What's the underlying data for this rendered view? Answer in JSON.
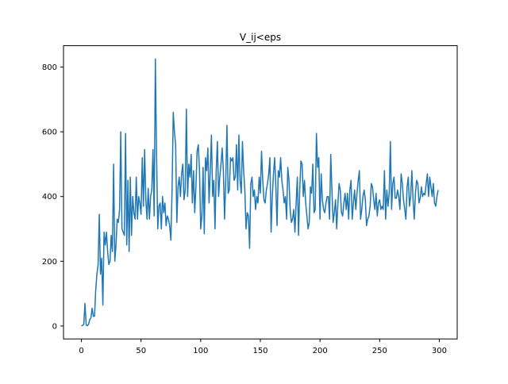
{
  "chart_data": {
    "type": "line",
    "title": "V_ij<eps",
    "xlabel": "",
    "ylabel": "",
    "xlim": [
      -15,
      315
    ],
    "ylim": [
      -40,
      866
    ],
    "xticks": [
      0,
      50,
      100,
      150,
      200,
      250,
      300
    ],
    "yticks": [
      0,
      200,
      400,
      600,
      800
    ],
    "grid": false,
    "legend": "none",
    "line_color": "#1f77b4",
    "series": [
      {
        "x_start": 0,
        "x_step": 1,
        "values": [
          0,
          2,
          5,
          70,
          3,
          1,
          5,
          20,
          25,
          55,
          30,
          30,
          110,
          160,
          190,
          345,
          160,
          210,
          65,
          290,
          250,
          290,
          230,
          190,
          200,
          280,
          230,
          500,
          200,
          250,
          330,
          320,
          360,
          600,
          300,
          290,
          280,
          595,
          250,
          450,
          230,
          460,
          280,
          400,
          350,
          330,
          460,
          330,
          400,
          380,
          345,
          520,
          370,
          545,
          390,
          330,
          425,
          330,
          400,
          420,
          545,
          340,
          825,
          530,
          300,
          370,
          380,
          300,
          400,
          350,
          380,
          310,
          340,
          330,
          310,
          265,
          420,
          660,
          600,
          560,
          320,
          430,
          460,
          400,
          470,
          500,
          390,
          420,
          670,
          400,
          500,
          460,
          530,
          380,
          480,
          350,
          430,
          540,
          560,
          480,
          300,
          340,
          490,
          285,
          520,
          480,
          550,
          380,
          480,
          590,
          400,
          450,
          300,
          480,
          570,
          400,
          460,
          500,
          550,
          480,
          330,
          450,
          620,
          410,
          420,
          520,
          510,
          520,
          450,
          460,
          560,
          420,
          590,
          450,
          410,
          570,
          480,
          420,
          300,
          350,
          340,
          240,
          440,
          460,
          400,
          420,
          360,
          400,
          380,
          460,
          410,
          540,
          450,
          390,
          380,
          420,
          440,
          470,
          520,
          290,
          400,
          470,
          520,
          430,
          310,
          480,
          460,
          520,
          450,
          420,
          380,
          400,
          330,
          490,
          450,
          360,
          320,
          330,
          360,
          290,
          380,
          460,
          280,
          420,
          510,
          500,
          400,
          450,
          380,
          340,
          300,
          320,
          430,
          410,
          500,
          350,
          360,
          595,
          490,
          520,
          330,
          470,
          390,
          360,
          350,
          380,
          400,
          400,
          330,
          530,
          420,
          320,
          350,
          390,
          300,
          380,
          440,
          420,
          350,
          340,
          380,
          410,
          360,
          410,
          330,
          420,
          450,
          330,
          380,
          420,
          360,
          410,
          450,
          480,
          330,
          360,
          400,
          420,
          390,
          310,
          330,
          340,
          370,
          440,
          430,
          390,
          360,
          410,
          340,
          380,
          390,
          360,
          370,
          360,
          480,
          330,
          420,
          370,
          410,
          570,
          360,
          440,
          460,
          395,
          395,
          420,
          400,
          360,
          470,
          440,
          390,
          360,
          330,
          430,
          460,
          370,
          400,
          480,
          390,
          330,
          410,
          450,
          440,
          380,
          395,
          430,
          400,
          410,
          405,
          440,
          470,
          400,
          460,
          430,
          400,
          440,
          380,
          370,
          400,
          420
        ]
      }
    ]
  }
}
